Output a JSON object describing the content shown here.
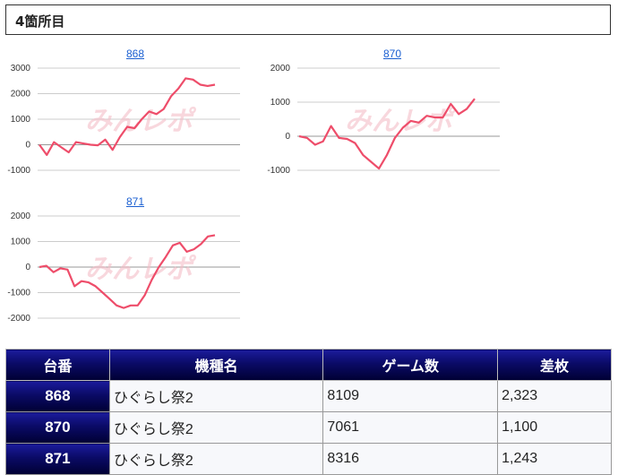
{
  "section_title": "4箇所目",
  "charts": [
    {
      "id": "868",
      "title": "868",
      "yticks": [
        "3000",
        "2000",
        "1000",
        "0",
        "-1000"
      ],
      "ymin": -1000,
      "ymax": 3000,
      "values": [
        0,
        -400,
        100,
        -100,
        -300,
        100,
        50,
        0,
        -20,
        200,
        -200,
        300,
        700,
        650,
        1000,
        1300,
        1200,
        1400,
        1900,
        2200,
        2600,
        2550,
        2350,
        2300,
        2350
      ]
    },
    {
      "id": "870",
      "title": "870",
      "yticks": [
        "2000",
        "1000",
        "0",
        "-1000"
      ],
      "ymin": -1000,
      "ymax": 2000,
      "values": [
        0,
        -50,
        -250,
        -150,
        300,
        -50,
        -80,
        -200,
        -550,
        -750,
        -950,
        -550,
        -50,
        250,
        450,
        400,
        600,
        550,
        550,
        950,
        650,
        800,
        1100
      ]
    },
    {
      "id": "871",
      "title": "871",
      "yticks": [
        "2000",
        "1000",
        "0",
        "-1000",
        "-2000"
      ],
      "ymin": -2000,
      "ymax": 2000,
      "values": [
        0,
        50,
        -200,
        -50,
        -100,
        -750,
        -550,
        -600,
        -750,
        -1000,
        -1250,
        -1500,
        -1600,
        -1500,
        -1500,
        -1100,
        -500,
        0,
        400,
        850,
        950,
        600,
        700,
        900,
        1200,
        1250
      ]
    }
  ],
  "table": {
    "headers": [
      "台番",
      "機種名",
      "ゲーム数",
      "差枚"
    ],
    "rows": [
      {
        "no": "868",
        "model": "ひぐらし祭2",
        "games": "8109",
        "diff": "2,323"
      },
      {
        "no": "870",
        "model": "ひぐらし祭2",
        "games": "7061",
        "diff": "1,100"
      },
      {
        "no": "871",
        "model": "ひぐらし祭2",
        "games": "8316",
        "diff": "1,243"
      }
    ]
  },
  "colors": {
    "line": "#ee4d6a",
    "grid": "#cccccc",
    "header_bg": "#0a0a66"
  }
}
